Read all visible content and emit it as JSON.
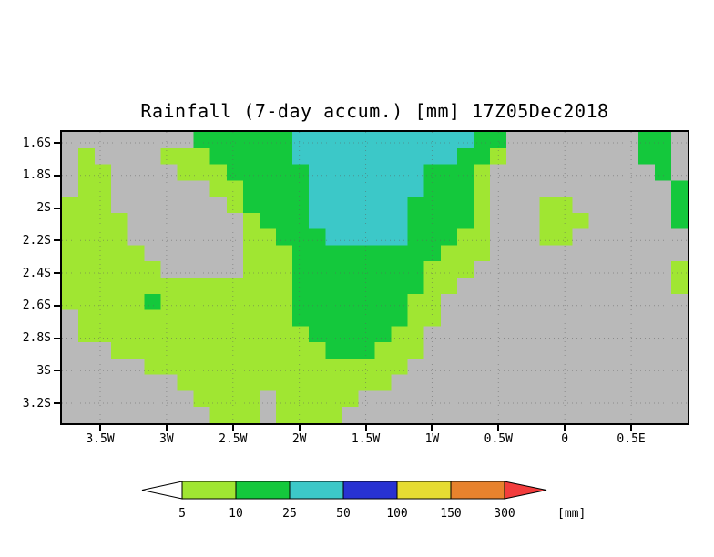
{
  "chart_data": {
    "type": "heatmap",
    "title": "Rainfall (7-day accum.) [mm] 17Z05Dec2018",
    "y_tick_labels": [
      "1.6S",
      "1.8S",
      "2S",
      "2.2S",
      "2.4S",
      "2.6S",
      "2.8S",
      "3S",
      "3.2S"
    ],
    "x_tick_labels": [
      "3.5W",
      "3W",
      "2.5W",
      "2W",
      "1.5W",
      "1W",
      "0.5W",
      "0",
      "0.5E"
    ],
    "grid_on": true,
    "legend_position": "bottom",
    "colorbar": {
      "levels": [
        "5",
        "10",
        "25",
        "50",
        "100",
        "150",
        "300"
      ],
      "unit_label": "[mm]",
      "colors": [
        "#ffffff",
        "#a0e632",
        "#14c83c",
        "#3cc8c8",
        "#2832d2",
        "#e6dc32",
        "#e8822d",
        "#f23c3c"
      ]
    },
    "palette": {
      "g": "#b9b9b9",
      "l": "#a0e632",
      "G": "#14c83c",
      "c": "#3cc8c8"
    },
    "palette_legend": {
      "g": "<5",
      "l": "5-10",
      "G": "10-25",
      "c": "25-50"
    },
    "grid_rows": [
      "ggggggggGGGGGGcccccccccccGGggggggggGGg",
      "glgggglllGGGGGccccccccccGGlggggggggGGg",
      "gllgggglllGGGGGcccccccGGGlggggggggggGg",
      "gllggggggllGGGGcccccccGGGlgggggggggggG",
      "lllggggggglGGGGccccccGGGGlgggllggggggG",
      "llllggggggglGGGccccccGGGGlggglllgggggG",
      "llllgggggggllGGGcccccGGGllgggllggggggg",
      "lllllgggggglllGGGGGGGGGlllgggggggggggg",
      "llllllggggglllGGGGGGGGlllggggggggggggl",
      "llllllllllllllGGGGGGGGllgggggggggggggl",
      "lllllGllllllllGGGGGGGllggggggggggggggg",
      "glllllllllllllGGGGGGGllggggggggggggggg",
      "gllllllllllllllGGGGGllgggggggggggggggg",
      "ggglllllllllllllGGGlllgggggggggggggggg",
      "gggggllllllllllllllllggggggggggggggggg",
      "ggggggglllllllllllllggggggggggggggggggg",
      "ggggggggllllglllllgggggggggggggggggggg",
      "ggggggggglllgllllggggggggggggggggggggg"
    ]
  }
}
